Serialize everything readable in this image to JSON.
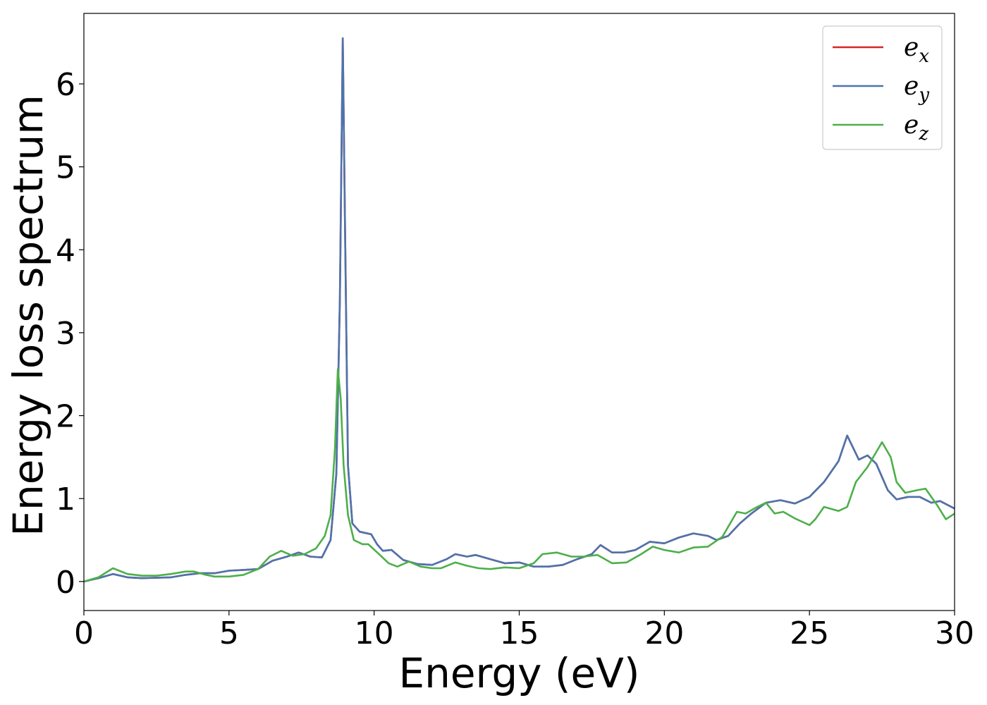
{
  "chart_data": {
    "type": "line",
    "title": "",
    "xlabel": "Energy (eV)",
    "ylabel": "Energy loss spectrum",
    "xlim": [
      0,
      30
    ],
    "ylim": [
      -0.35,
      6.85
    ],
    "xticks": [
      0,
      5,
      10,
      15,
      20,
      25,
      30
    ],
    "yticks": [
      0,
      1,
      2,
      3,
      4,
      5,
      6
    ],
    "grid": false,
    "legend_position": "top-right",
    "series": [
      {
        "name": "e_x",
        "label_base": "e",
        "label_sub": "x",
        "color": "#d62728",
        "points": [
          [
            0,
            0.0
          ],
          [
            0.5,
            0.04
          ],
          [
            1.0,
            0.09
          ],
          [
            1.5,
            0.05
          ],
          [
            2.0,
            0.04
          ],
          [
            3.0,
            0.05
          ],
          [
            3.5,
            0.08
          ],
          [
            4.0,
            0.1
          ],
          [
            4.5,
            0.1
          ],
          [
            5.0,
            0.13
          ],
          [
            5.5,
            0.14
          ],
          [
            6.0,
            0.15
          ],
          [
            6.5,
            0.25
          ],
          [
            7.0,
            0.3
          ],
          [
            7.4,
            0.35
          ],
          [
            7.8,
            0.3
          ],
          [
            8.2,
            0.29
          ],
          [
            8.5,
            0.5
          ],
          [
            8.7,
            1.3
          ],
          [
            8.82,
            3.4
          ],
          [
            8.92,
            6.55
          ],
          [
            9.0,
            4.2
          ],
          [
            9.1,
            1.4
          ],
          [
            9.25,
            0.7
          ],
          [
            9.5,
            0.6
          ],
          [
            9.9,
            0.57
          ],
          [
            10.1,
            0.45
          ],
          [
            10.3,
            0.37
          ],
          [
            10.6,
            0.38
          ],
          [
            11.0,
            0.26
          ],
          [
            11.5,
            0.21
          ],
          [
            12.0,
            0.2
          ],
          [
            12.5,
            0.27
          ],
          [
            12.8,
            0.33
          ],
          [
            13.2,
            0.3
          ],
          [
            13.5,
            0.32
          ],
          [
            14.0,
            0.27
          ],
          [
            14.5,
            0.22
          ],
          [
            15.0,
            0.23
          ],
          [
            15.5,
            0.18
          ],
          [
            16.0,
            0.18
          ],
          [
            16.5,
            0.2
          ],
          [
            17.0,
            0.27
          ],
          [
            17.5,
            0.33
          ],
          [
            17.8,
            0.44
          ],
          [
            18.2,
            0.35
          ],
          [
            18.6,
            0.35
          ],
          [
            19.0,
            0.38
          ],
          [
            19.5,
            0.48
          ],
          [
            20.0,
            0.46
          ],
          [
            20.5,
            0.53
          ],
          [
            21.0,
            0.58
          ],
          [
            21.5,
            0.55
          ],
          [
            21.8,
            0.5
          ],
          [
            22.2,
            0.55
          ],
          [
            22.6,
            0.7
          ],
          [
            23.0,
            0.82
          ],
          [
            23.5,
            0.95
          ],
          [
            24.0,
            0.98
          ],
          [
            24.5,
            0.94
          ],
          [
            25.0,
            1.02
          ],
          [
            25.5,
            1.2
          ],
          [
            26.0,
            1.45
          ],
          [
            26.3,
            1.76
          ],
          [
            26.7,
            1.47
          ],
          [
            27.0,
            1.52
          ],
          [
            27.3,
            1.42
          ],
          [
            27.7,
            1.1
          ],
          [
            28.0,
            0.99
          ],
          [
            28.4,
            1.02
          ],
          [
            28.8,
            1.02
          ],
          [
            29.2,
            0.95
          ],
          [
            29.5,
            0.97
          ],
          [
            30.0,
            0.88
          ]
        ]
      },
      {
        "name": "e_y",
        "label_base": "e",
        "label_sub": "y",
        "color": "#4c74ad",
        "points": [
          [
            0,
            0.0
          ],
          [
            0.5,
            0.04
          ],
          [
            1.0,
            0.09
          ],
          [
            1.5,
            0.05
          ],
          [
            2.0,
            0.04
          ],
          [
            3.0,
            0.05
          ],
          [
            3.5,
            0.08
          ],
          [
            4.0,
            0.1
          ],
          [
            4.5,
            0.1
          ],
          [
            5.0,
            0.13
          ],
          [
            5.5,
            0.14
          ],
          [
            6.0,
            0.15
          ],
          [
            6.5,
            0.25
          ],
          [
            7.0,
            0.3
          ],
          [
            7.4,
            0.35
          ],
          [
            7.8,
            0.3
          ],
          [
            8.2,
            0.29
          ],
          [
            8.5,
            0.5
          ],
          [
            8.7,
            1.3
          ],
          [
            8.82,
            3.4
          ],
          [
            8.92,
            6.55
          ],
          [
            9.0,
            4.2
          ],
          [
            9.1,
            1.4
          ],
          [
            9.25,
            0.7
          ],
          [
            9.5,
            0.6
          ],
          [
            9.9,
            0.57
          ],
          [
            10.1,
            0.45
          ],
          [
            10.3,
            0.37
          ],
          [
            10.6,
            0.38
          ],
          [
            11.0,
            0.26
          ],
          [
            11.5,
            0.21
          ],
          [
            12.0,
            0.2
          ],
          [
            12.5,
            0.27
          ],
          [
            12.8,
            0.33
          ],
          [
            13.2,
            0.3
          ],
          [
            13.5,
            0.32
          ],
          [
            14.0,
            0.27
          ],
          [
            14.5,
            0.22
          ],
          [
            15.0,
            0.23
          ],
          [
            15.5,
            0.18
          ],
          [
            16.0,
            0.18
          ],
          [
            16.5,
            0.2
          ],
          [
            17.0,
            0.27
          ],
          [
            17.5,
            0.33
          ],
          [
            17.8,
            0.44
          ],
          [
            18.2,
            0.35
          ],
          [
            18.6,
            0.35
          ],
          [
            19.0,
            0.38
          ],
          [
            19.5,
            0.48
          ],
          [
            20.0,
            0.46
          ],
          [
            20.5,
            0.53
          ],
          [
            21.0,
            0.58
          ],
          [
            21.5,
            0.55
          ],
          [
            21.8,
            0.5
          ],
          [
            22.2,
            0.55
          ],
          [
            22.6,
            0.7
          ],
          [
            23.0,
            0.82
          ],
          [
            23.5,
            0.95
          ],
          [
            24.0,
            0.98
          ],
          [
            24.5,
            0.94
          ],
          [
            25.0,
            1.02
          ],
          [
            25.5,
            1.2
          ],
          [
            26.0,
            1.45
          ],
          [
            26.3,
            1.76
          ],
          [
            26.7,
            1.47
          ],
          [
            27.0,
            1.52
          ],
          [
            27.3,
            1.42
          ],
          [
            27.7,
            1.1
          ],
          [
            28.0,
            0.99
          ],
          [
            28.4,
            1.02
          ],
          [
            28.8,
            1.02
          ],
          [
            29.2,
            0.95
          ],
          [
            29.5,
            0.97
          ],
          [
            30.0,
            0.88
          ]
        ]
      },
      {
        "name": "e_z",
        "label_base": "e",
        "label_sub": "z",
        "color": "#4daf4a",
        "points": [
          [
            0,
            0.0
          ],
          [
            0.5,
            0.05
          ],
          [
            1.0,
            0.16
          ],
          [
            1.5,
            0.09
          ],
          [
            2.0,
            0.07
          ],
          [
            2.5,
            0.07
          ],
          [
            3.0,
            0.09
          ],
          [
            3.5,
            0.12
          ],
          [
            3.8,
            0.12
          ],
          [
            4.2,
            0.08
          ],
          [
            4.5,
            0.06
          ],
          [
            5.0,
            0.06
          ],
          [
            5.5,
            0.08
          ],
          [
            6.0,
            0.15
          ],
          [
            6.4,
            0.3
          ],
          [
            6.8,
            0.37
          ],
          [
            7.2,
            0.31
          ],
          [
            7.6,
            0.33
          ],
          [
            8.0,
            0.4
          ],
          [
            8.3,
            0.55
          ],
          [
            8.5,
            0.8
          ],
          [
            8.65,
            1.6
          ],
          [
            8.75,
            2.56
          ],
          [
            8.85,
            2.2
          ],
          [
            8.95,
            1.4
          ],
          [
            9.1,
            0.8
          ],
          [
            9.3,
            0.5
          ],
          [
            9.6,
            0.45
          ],
          [
            9.8,
            0.45
          ],
          [
            10.2,
            0.32
          ],
          [
            10.5,
            0.22
          ],
          [
            10.8,
            0.18
          ],
          [
            11.2,
            0.24
          ],
          [
            11.6,
            0.18
          ],
          [
            12.0,
            0.16
          ],
          [
            12.3,
            0.16
          ],
          [
            12.8,
            0.23
          ],
          [
            13.2,
            0.19
          ],
          [
            13.6,
            0.16
          ],
          [
            14.0,
            0.15
          ],
          [
            14.5,
            0.17
          ],
          [
            15.0,
            0.16
          ],
          [
            15.5,
            0.22
          ],
          [
            15.8,
            0.33
          ],
          [
            16.3,
            0.35
          ],
          [
            16.8,
            0.3
          ],
          [
            17.2,
            0.3
          ],
          [
            17.7,
            0.32
          ],
          [
            18.2,
            0.22
          ],
          [
            18.7,
            0.23
          ],
          [
            19.2,
            0.33
          ],
          [
            19.6,
            0.42
          ],
          [
            20.0,
            0.38
          ],
          [
            20.5,
            0.35
          ],
          [
            21.0,
            0.41
          ],
          [
            21.5,
            0.42
          ],
          [
            22.0,
            0.54
          ],
          [
            22.3,
            0.72
          ],
          [
            22.5,
            0.84
          ],
          [
            22.8,
            0.82
          ],
          [
            23.2,
            0.9
          ],
          [
            23.5,
            0.95
          ],
          [
            23.8,
            0.82
          ],
          [
            24.1,
            0.84
          ],
          [
            24.5,
            0.76
          ],
          [
            25.0,
            0.68
          ],
          [
            25.2,
            0.75
          ],
          [
            25.5,
            0.9
          ],
          [
            26.0,
            0.85
          ],
          [
            26.3,
            0.9
          ],
          [
            26.6,
            1.2
          ],
          [
            27.0,
            1.38
          ],
          [
            27.2,
            1.5
          ],
          [
            27.5,
            1.68
          ],
          [
            27.8,
            1.5
          ],
          [
            28.0,
            1.2
          ],
          [
            28.3,
            1.07
          ],
          [
            28.7,
            1.1
          ],
          [
            29.0,
            1.12
          ],
          [
            29.4,
            0.92
          ],
          [
            29.7,
            0.75
          ],
          [
            30.0,
            0.82
          ]
        ]
      }
    ]
  }
}
